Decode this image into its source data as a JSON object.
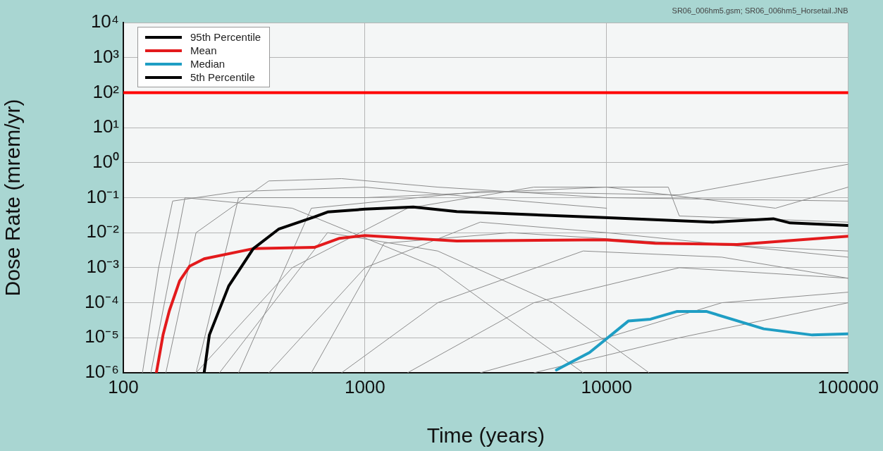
{
  "chart_data": {
    "type": "line",
    "xlabel": "Time (years)",
    "ylabel": "Dose Rate (mrem/yr)",
    "log": "xy",
    "grid": true,
    "legend": "top left",
    "marker": "none",
    "line_style": "solid",
    "annotations": [
      "SR06_006hm5.gsm; SR06_006hm5_Horsetail.JNB"
    ],
    "xlim": [
      100,
      100000
    ],
    "xticks": [
      100,
      1000,
      10000,
      100000
    ],
    "ylim": [
      1e-06,
      10000
    ],
    "yticks": [
      {
        "value": 1e-06,
        "label": "10⁻⁶"
      },
      {
        "value": 1e-05,
        "label": "10⁻⁵"
      },
      {
        "value": 0.0001,
        "label": "10⁻⁴"
      },
      {
        "value": 0.001,
        "label": "10⁻³"
      },
      {
        "value": 0.01,
        "label": "10⁻²"
      },
      {
        "value": 0.1,
        "label": "10⁻¹"
      },
      {
        "value": 1,
        "label": "10⁰"
      },
      {
        "value": 10,
        "label": "10¹"
      },
      {
        "value": 100,
        "label": "10²"
      },
      {
        "value": 1000,
        "label": "10³"
      },
      {
        "value": 10000,
        "label": "10⁴"
      }
    ],
    "ref_lines": [
      {
        "axis": "y",
        "value": 100,
        "color": "#ff0000"
      }
    ],
    "series": [
      {
        "name": "95th Percentile",
        "color": "#000000",
        "x": [
          216,
          227,
          273,
          345,
          439,
          617,
          701,
          1000,
          1585,
          2400,
          9800,
          27500,
          49000,
          57500,
          100000
        ],
        "values": [
          1e-06,
          1.2e-05,
          0.0003,
          0.0035,
          0.0126,
          0.028,
          0.039,
          0.047,
          0.054,
          0.04,
          0.027,
          0.02,
          0.025,
          0.019,
          0.016
        ]
      },
      {
        "name": "Mean",
        "color": "#e31a1c",
        "x": [
          137,
          146,
          155,
          171,
          188,
          216,
          345,
          617,
          785,
          1000,
          2400,
          9800,
          15900,
          34700,
          100000
        ],
        "values": [
          1e-06,
          1.2e-05,
          5.9e-05,
          0.00042,
          0.0011,
          0.0018,
          0.0035,
          0.0038,
          0.0069,
          0.0083,
          0.0058,
          0.0063,
          0.005,
          0.0046,
          0.0079
        ]
      },
      {
        "name": "Median",
        "color": "#1f9ec4",
        "x": [
          6200,
          8500,
          12300,
          15200,
          19500,
          26000,
          44700,
          71000,
          100000
        ],
        "values": [
          1.2e-06,
          3.8e-06,
          3e-05,
          3.4e-05,
          5.6e-05,
          5.6e-05,
          1.8e-05,
          1.2e-05,
          1.3e-05
        ]
      },
      {
        "name": "5th Percentile",
        "color": "#000000"
      },
      {
        "color": "#8c8c8c",
        "x": [
          120,
          140,
          160,
          300,
          1000,
          3000,
          10000
        ],
        "values": [
          1e-06,
          0.001,
          0.08,
          0.15,
          0.2,
          0.1,
          0.05
        ]
      },
      {
        "color": "#8c8c8c",
        "x": [
          150,
          200,
          400,
          800,
          2000,
          10000,
          100000
        ],
        "values": [
          1e-06,
          0.01,
          0.3,
          0.35,
          0.2,
          0.1,
          0.08
        ]
      },
      {
        "color": "#8c8c8c",
        "x": [
          300,
          600,
          3000,
          20000,
          100000
        ],
        "values": [
          1e-06,
          0.05,
          0.15,
          0.12,
          0.9
        ]
      },
      {
        "color": "#8c8c8c",
        "x": [
          200,
          500,
          1500,
          5000,
          18000,
          20000,
          100000
        ],
        "values": [
          1e-06,
          0.001,
          0.05,
          0.2,
          0.2,
          0.03,
          0.02
        ]
      },
      {
        "color": "#8c8c8c",
        "x": [
          400,
          1000,
          3000,
          10000,
          100000
        ],
        "values": [
          1e-06,
          0.001,
          0.02,
          0.01,
          0.002
        ]
      },
      {
        "color": "#8c8c8c",
        "x": [
          800,
          2000,
          8000,
          30000,
          100000
        ],
        "values": [
          1e-06,
          0.0001,
          0.003,
          0.002,
          0.0005
        ]
      },
      {
        "color": "#8c8c8c",
        "x": [
          1500,
          5000,
          20000,
          100000
        ],
        "values": [
          1e-06,
          0.0001,
          0.001,
          0.0005
        ]
      },
      {
        "color": "#8c8c8c",
        "x": [
          130,
          180,
          500,
          2000,
          5000,
          8000
        ],
        "values": [
          1e-06,
          0.1,
          0.05,
          0.001,
          1e-05,
          1e-06
        ]
      },
      {
        "color": "#8c8c8c",
        "x": [
          250,
          700,
          2000,
          6000,
          15000
        ],
        "values": [
          1e-06,
          0.01,
          0.003,
          0.0001,
          1e-06
        ]
      },
      {
        "color": "#8c8c8c",
        "x": [
          3000,
          10000,
          30000,
          100000
        ],
        "values": [
          1e-06,
          1e-05,
          0.0001,
          0.0002
        ]
      },
      {
        "color": "#8c8c8c",
        "x": [
          600,
          1200,
          4000,
          20000,
          100000
        ],
        "values": [
          1e-06,
          0.005,
          0.01,
          0.005,
          0.003
        ]
      },
      {
        "color": "#8c8c8c",
        "x": [
          5000,
          20000,
          100000
        ],
        "values": [
          1e-06,
          1e-05,
          0.0001
        ]
      },
      {
        "color": "#8c8c8c",
        "x": [
          200,
          300,
          1000,
          10000,
          50000,
          100000
        ],
        "values": [
          1e-06,
          0.1,
          0.1,
          0.2,
          0.05,
          0.2
        ]
      }
    ]
  }
}
